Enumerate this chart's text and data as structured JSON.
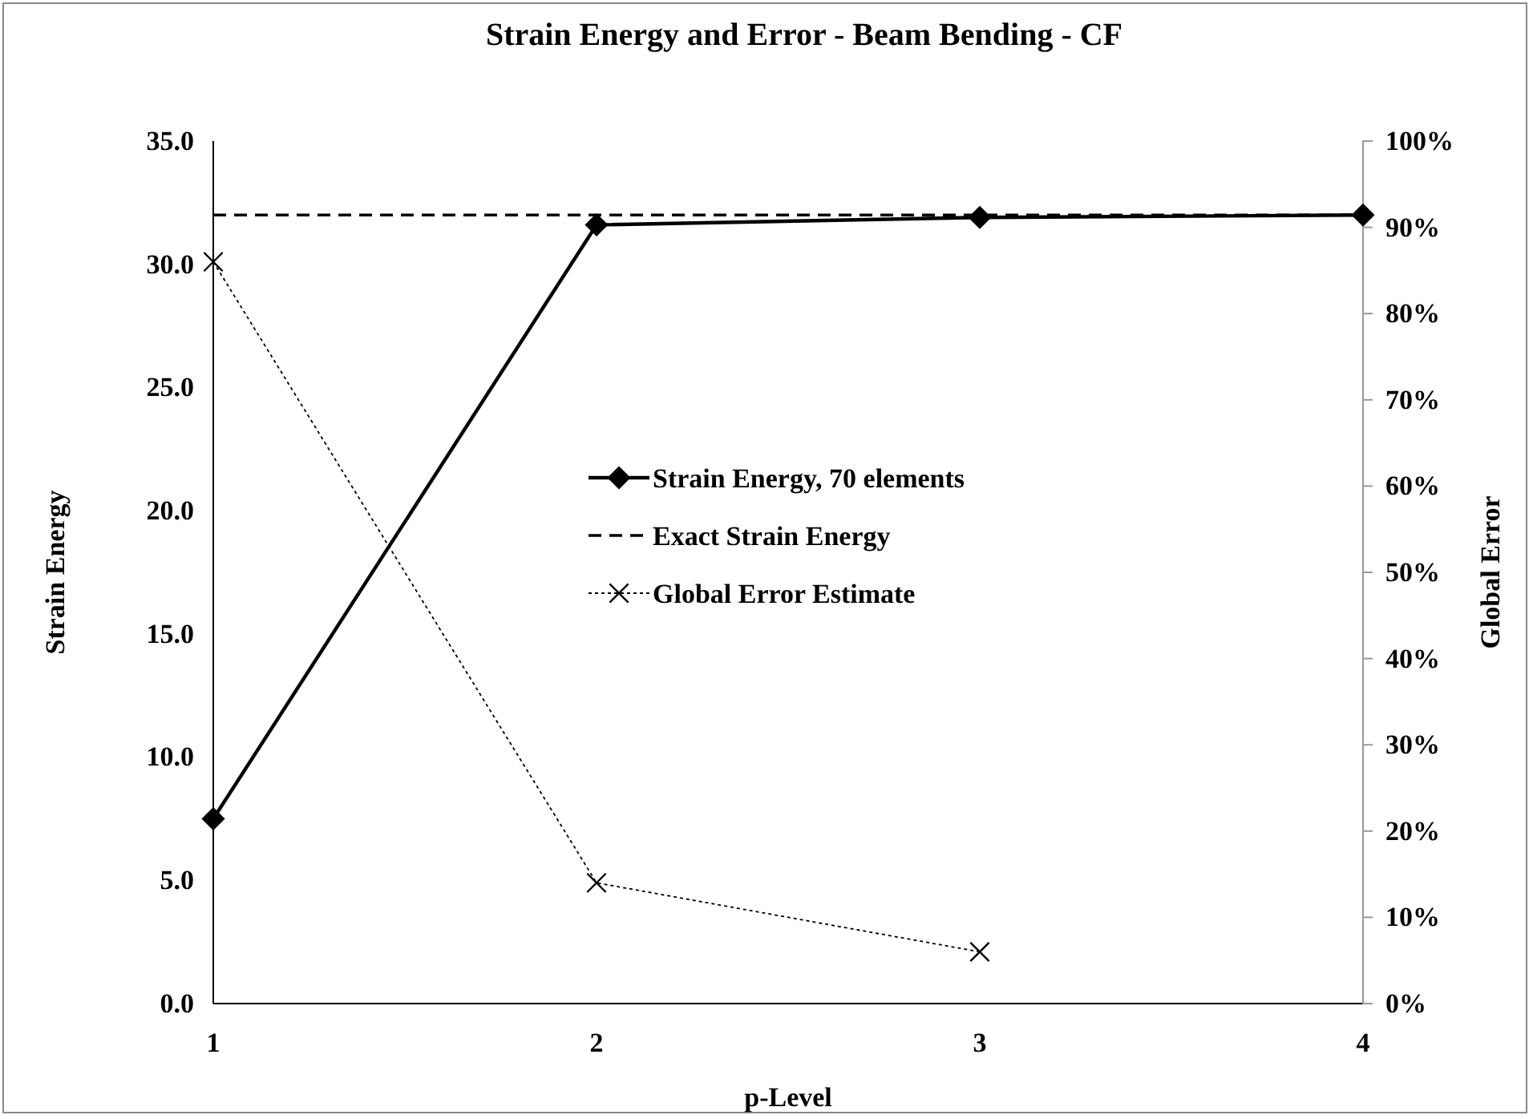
{
  "chart_data": {
    "type": "line",
    "title": "Strain Energy and Error - Beam Bending - CF",
    "xlabel": "p-Level",
    "ylabel": "Strain Energy",
    "y2label": "Global Error",
    "x": [
      1,
      2,
      3,
      4
    ],
    "xlim": [
      1,
      4
    ],
    "xticks": [
      1,
      2,
      3,
      4
    ],
    "ylim": [
      0,
      35
    ],
    "yticks": [
      {
        "value": 0,
        "label": "0.0"
      },
      {
        "value": 5,
        "label": "5.0"
      },
      {
        "value": 10,
        "label": "10.0"
      },
      {
        "value": 15,
        "label": "15.0"
      },
      {
        "value": 20,
        "label": "20.0"
      },
      {
        "value": 25,
        "label": "25.0"
      },
      {
        "value": 30,
        "label": "30.0"
      },
      {
        "value": 35,
        "label": "35.0"
      }
    ],
    "y2lim": [
      0,
      100
    ],
    "y2ticks": [
      {
        "value": 0,
        "label": "0%"
      },
      {
        "value": 10,
        "label": "10%"
      },
      {
        "value": 20,
        "label": "20%"
      },
      {
        "value": 30,
        "label": "30%"
      },
      {
        "value": 40,
        "label": "40%"
      },
      {
        "value": 50,
        "label": "50%"
      },
      {
        "value": 60,
        "label": "60%"
      },
      {
        "value": 70,
        "label": "70%"
      },
      {
        "value": 80,
        "label": "80%"
      },
      {
        "value": 90,
        "label": "90%"
      },
      {
        "value": 100,
        "label": "100%"
      }
    ],
    "grid": false,
    "legend": "right",
    "series": [
      {
        "name": "Strain Energy, 70 elements",
        "color": "#000000",
        "values": [
          7.5,
          31.6,
          31.9,
          32.0
        ],
        "marker": "diamond",
        "line_style": "solid"
      },
      {
        "name": "Exact Strain Energy",
        "color": "#000000",
        "values": [
          32.0,
          32.0,
          32.0,
          32.0
        ],
        "marker": "none",
        "line_style": "dashed"
      },
      {
        "name": "Global Error Estimate",
        "color": "#000000",
        "values": [
          86,
          14,
          6,
          null
        ],
        "axis": "y2",
        "marker": "cross",
        "line_style": "dotted"
      }
    ]
  }
}
